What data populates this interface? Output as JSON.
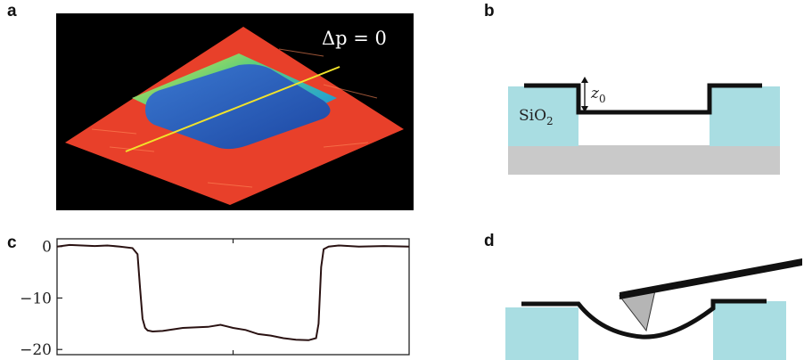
{
  "labels": {
    "a": "a",
    "b": "b",
    "c": "c",
    "d": "d"
  },
  "panel_a": {
    "annotation": "Δp = 0"
  },
  "panel_b": {
    "material": "SiO",
    "material_sub": "2",
    "depth": "z",
    "depth_sub": "0"
  },
  "chart_data": {
    "type": "line",
    "title": "",
    "xlabel": "",
    "ylabel": "",
    "ylim": [
      -21,
      1.5
    ],
    "yticks": [
      "0",
      "−10",
      "−20"
    ],
    "ytick_values": [
      0,
      -10,
      -20
    ],
    "x": [
      0,
      5,
      10,
      15,
      20,
      25,
      30,
      32,
      33,
      34,
      35,
      36,
      38,
      42,
      50,
      60,
      65,
      70,
      75,
      80,
      85,
      90,
      95,
      100,
      103,
      104,
      105,
      106,
      108,
      112,
      120,
      130,
      140
    ],
    "values": [
      0,
      0.3,
      0.2,
      0.1,
      0.2,
      0,
      -0.3,
      -1.5,
      -8,
      -14,
      -15.8,
      -16.3,
      -16.5,
      -16.4,
      -15.8,
      -15.6,
      -15.2,
      -15.8,
      -16.2,
      -17,
      -17.3,
      -17.8,
      -18.1,
      -18.2,
      -17.8,
      -15,
      -4,
      -0.5,
      0,
      0.2,
      0,
      0.1,
      0
    ]
  },
  "colors": {
    "substrate_blue": "#a9dde2",
    "base_gray": "#c9c9c9",
    "membrane": "#111111",
    "trench_red": "#e8402a",
    "trench_blue": "#2c5fb8",
    "scan_line": "#f2e32a"
  }
}
